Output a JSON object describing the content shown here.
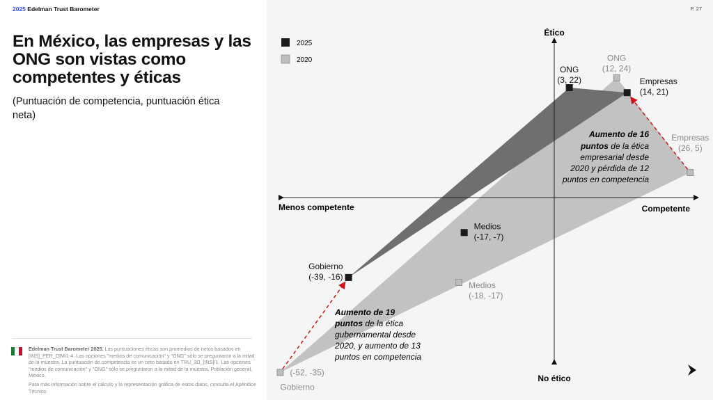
{
  "header": {
    "brand_year": "2025",
    "brand_name": "Edelman Trust Barometer",
    "page": "P. 27"
  },
  "title": "En México, las empresas y las ONG son vistas como competentes y éticas",
  "subtitle": "(Puntuación de competencia, puntuación ética neta)",
  "footnote": {
    "bold": "Edelman Trust Barometer 2025.",
    "text": " Las puntuaciones éticas son promedios de netos basados en [INS]_PER_DIM/1-4. Las opciones \"medios de comunicación\" y \"ONG\" sólo se preguntaron a la mitad de la muestra. La puntuación de competencia es un neto basado en TRU_3D_[INS]/1. Las opciones \"medios de comunicación\" y \"ONG\" sólo se preguntaron a la mitad de la muestra. Población general, México.",
    "more": "Para más información sobre el cálculo y la representación gráfica de estos datos, consulta el Apéndice Técnico."
  },
  "chart_data": {
    "type": "scatter",
    "axes": {
      "top": "Ético",
      "bottom": "No ético",
      "left": "Menos competente",
      "right": "Competente"
    },
    "legend": [
      {
        "name": "2025",
        "color": "#1a1a1a"
      },
      {
        "name": "2020",
        "color": "#bdbdbd"
      }
    ],
    "series": [
      {
        "name": "2025",
        "color": "#1a1a1a",
        "fill": "#6f6f6f",
        "points": [
          {
            "label": "ONG",
            "x": 3,
            "y": 22,
            "text": "(3, 22)"
          },
          {
            "label": "Empresas",
            "x": 14,
            "y": 21,
            "text": "(14, 21)"
          },
          {
            "label": "Gobierno",
            "x": -39,
            "y": -16,
            "text": "(-39, -16)"
          },
          {
            "label": "Medios",
            "x": -17,
            "y": -7,
            "text": "(-17, -7)"
          }
        ]
      },
      {
        "name": "2020",
        "color": "#bdbdbd",
        "fill": "#c2c2c2",
        "points": [
          {
            "label": "ONG",
            "x": 12,
            "y": 24,
            "text": "(12, 24)"
          },
          {
            "label": "Empresas",
            "x": 26,
            "y": 5,
            "text": "(26, 5)"
          },
          {
            "label": "Gobierno",
            "x": -52,
            "y": -35,
            "text": "(-52, -35)"
          },
          {
            "label": "Medios",
            "x": -18,
            "y": -17,
            "text": "(-18, -17)"
          }
        ]
      }
    ],
    "annotations": [
      {
        "bold": "Aumento de 16 puntos",
        "text": " de la ética empresarial desde 2020 y pérdida de 12 puntos en competencia"
      },
      {
        "bold": "Aumento de 19 puntos",
        "text": " de la ética gubernamental desde 2020, y aumento de 13 puntos en competencia"
      }
    ],
    "arrow_color": "#d0121b"
  }
}
